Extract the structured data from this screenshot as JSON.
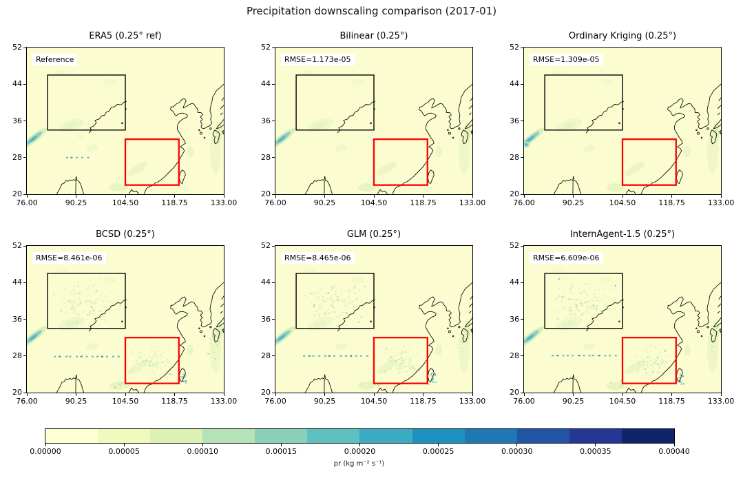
{
  "figure_title": "Precipitation downscaling comparison (2017-01)",
  "chart_data": {
    "type": "heatmap",
    "subtype": "geographic precipitation maps, 2x3 small multiples with shared discrete colorbar",
    "grid": {
      "rows": 2,
      "cols": 3
    },
    "panels": [
      {
        "title": "ERA5 (0.25° ref)",
        "annotation": "Reference",
        "variant": "era5"
      },
      {
        "title": "Bilinear (0.25°)",
        "annotation": "RMSE=1.173e-05",
        "variant": "smooth"
      },
      {
        "title": "Ordinary Kriging (0.25°)",
        "annotation": "RMSE=1.309e-05",
        "variant": "smooth"
      },
      {
        "title": "BCSD (0.25°)",
        "annotation": "RMSE=8.461e-06",
        "variant": "stipple"
      },
      {
        "title": "GLM (0.25°)",
        "annotation": "RMSE=8.465e-06",
        "variant": "stipple"
      },
      {
        "title": "InternAgent-1.5 (0.25°)",
        "annotation": "RMSE=6.609e-06",
        "variant": "stipple"
      }
    ],
    "rmse_values": {
      "Bilinear": 1.173e-05,
      "Ordinary Kriging": 1.309e-05,
      "BCSD": 8.461e-06,
      "GLM": 8.465e-06,
      "InternAgent-1.5": 6.609e-06
    },
    "axes": {
      "xlim": [
        76.0,
        133.0
      ],
      "ylim": [
        20,
        52
      ],
      "x_ticks": [
        "76.00",
        "90.25",
        "104.50",
        "118.75",
        "133.00"
      ],
      "y_ticks": [
        "52",
        "44",
        "36",
        "28",
        "20"
      ]
    },
    "map_overlays": {
      "inner_box_black": {
        "lon": [
          82.0,
          104.5
        ],
        "lat": [
          34.0,
          46.0
        ],
        "color": "#000000"
      },
      "region_box_red": {
        "lon": [
          104.5,
          120.0
        ],
        "lat": [
          22.0,
          32.0
        ],
        "color": "#ff0000"
      }
    },
    "colorbar": {
      "label": "pr (kg m⁻² s⁻¹)",
      "orientation": "horizontal",
      "vmin": 0.0,
      "vmax": 0.0004,
      "ticks": [
        "0.00000",
        "0.00005",
        "0.00010",
        "0.00015",
        "0.00020",
        "0.00025",
        "0.00030",
        "0.00035",
        "0.00040"
      ],
      "n_segments": 12,
      "colors": [
        "#ffffd5",
        "#f1fabc",
        "#dcf1b2",
        "#b5e2b6",
        "#88d0ba",
        "#5ec0c1",
        "#3bacc3",
        "#1d91c0",
        "#1e78b4",
        "#2256a5",
        "#253795",
        "#122468"
      ]
    },
    "map_background": "#fbfcd0"
  }
}
